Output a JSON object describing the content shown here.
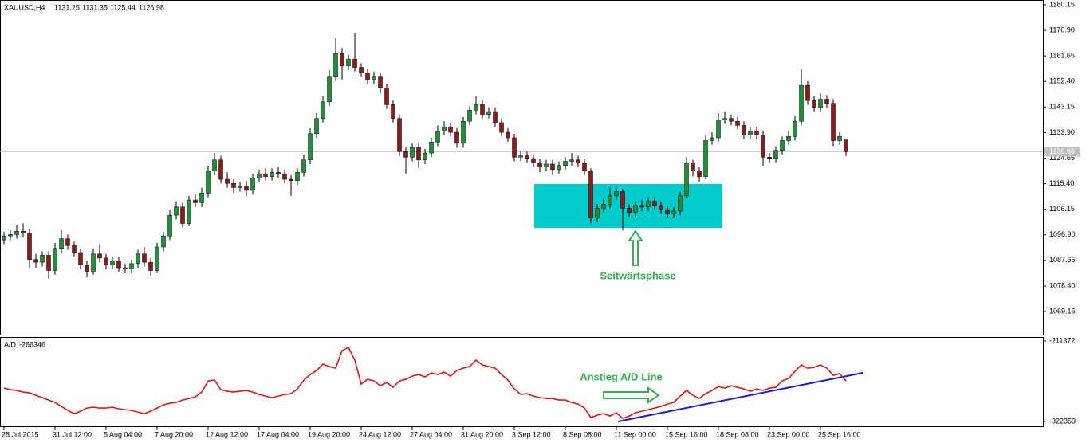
{
  "chart_data": [
    {
      "type": "candlestick",
      "title": "XAUUSD,H4",
      "annotation": "Seitwärtsphase",
      "up_color": "#1f8f3a",
      "down_color": "#8b1a1a",
      "wick_color": "#000000",
      "price_line_color": "#c0c0c0",
      "categories": [
        "28 Jul 2015",
        null,
        null,
        null,
        null,
        null,
        null,
        null,
        "31 Jul 12:00",
        null,
        null,
        null,
        null,
        null,
        null,
        null,
        "5 Aug 04:00",
        null,
        null,
        null,
        null,
        null,
        null,
        null,
        "7 Aug 20:00",
        null,
        null,
        null,
        null,
        null,
        null,
        null,
        "12 Aug 12:00",
        null,
        null,
        null,
        null,
        null,
        null,
        null,
        "17 Aug 04:00",
        null,
        null,
        null,
        null,
        null,
        null,
        null,
        "19 Aug 20:00",
        null,
        null,
        null,
        null,
        null,
        null,
        null,
        "24 Aug 12:00",
        null,
        null,
        null,
        null,
        null,
        null,
        null,
        "27 Aug 04:00",
        null,
        null,
        null,
        null,
        null,
        null,
        null,
        "31 Aug 20:00",
        null,
        null,
        null,
        null,
        null,
        null,
        null,
        "3 Sep 12:00",
        null,
        null,
        null,
        null,
        null,
        null,
        null,
        "8 Sep 08:00",
        null,
        null,
        null,
        null,
        null,
        null,
        null,
        "11 Sep 00:00",
        null,
        null,
        null,
        null,
        null,
        null,
        null,
        "15 Sep 16:00",
        null,
        null,
        null,
        null,
        null,
        null,
        null,
        "18 Sep 08:00",
        null,
        null,
        null,
        null,
        null,
        null,
        null,
        "23 Sep 00:00",
        null,
        null,
        null,
        null,
        null,
        null,
        null,
        "25 Sep 16:00",
        null,
        null,
        null,
        null
      ],
      "open": [
        1095.0,
        1096.5,
        1097.0,
        1098.2,
        1097.5,
        1088.0,
        1087.0,
        1089.5,
        1084.0,
        1092.0,
        1095.5,
        1093.0,
        1090.5,
        1086.0,
        1083.5,
        1090.0,
        1088.5,
        1086.0,
        1087.5,
        1085.0,
        1084.5,
        1086.5,
        1090.0,
        1087.0,
        1084.0,
        1092.5,
        1096.5,
        1104.0,
        1107.0,
        1101.0,
        1109.5,
        1108.5,
        1112.0,
        1120.0,
        1124.0,
        1117.0,
        1115.5,
        1114.0,
        1114.5,
        1113.0,
        1117.5,
        1119.0,
        1118.0,
        1119.5,
        1119.0,
        1117.0,
        1116.5,
        1119.5,
        1124.0,
        1133.5,
        1139.0,
        1145.0,
        1154.0,
        1162.5,
        1158.0,
        1160.5,
        1157.5,
        1155.5,
        1153.0,
        1154.0,
        1150.0,
        1144.0,
        1139.0,
        1127.0,
        1125.0,
        1128.5,
        1124.0,
        1126.5,
        1130.5,
        1134.5,
        1136.0,
        1134.0,
        1130.0,
        1138.0,
        1142.0,
        1144.0,
        1140.5,
        1141.5,
        1137.5,
        1134.0,
        1132.0,
        1125.0,
        1125.5,
        1124.5,
        1123.0,
        1121.5,
        1122.5,
        1120.5,
        1122.0,
        1123.5,
        1124.0,
        1123.0,
        1120.0,
        1103.0,
        1106.5,
        1108.0,
        1111.0,
        1112.5,
        1106.5,
        1105.0,
        1107.5,
        1107.0,
        1109.0,
        1107.5,
        1106.0,
        1104.5,
        1105.5,
        1111.0,
        1123.0,
        1120.0,
        1118.0,
        1131.0,
        1132.0,
        1138.5,
        1139.0,
        1138.0,
        1136.5,
        1133.0,
        1134.5,
        1133.0,
        1125.0,
        1124.5,
        1127.5,
        1131.0,
        1132.5,
        1138.0,
        1151.0,
        1145.5,
        1143.0,
        1146.0,
        1144.5,
        1131.0,
        1131.25
      ],
      "high": [
        1098.0,
        1098.5,
        1100.5,
        1101.0,
        1099.0,
        1090.0,
        1091.0,
        1091.0,
        1094.0,
        1098.5,
        1097.0,
        1094.5,
        1092.0,
        1087.5,
        1092.0,
        1093.5,
        1090.0,
        1089.0,
        1089.0,
        1086.5,
        1088.0,
        1091.5,
        1092.5,
        1088.5,
        1094.0,
        1098.0,
        1106.0,
        1109.0,
        1108.5,
        1111.0,
        1111.5,
        1114.0,
        1122.0,
        1126.5,
        1125.5,
        1119.5,
        1117.0,
        1116.0,
        1116.5,
        1119.0,
        1120.5,
        1121.0,
        1121.0,
        1121.5,
        1120.5,
        1118.5,
        1121.0,
        1126.0,
        1135.5,
        1141.0,
        1147.0,
        1156.5,
        1168.0,
        1164.5,
        1162.0,
        1170.0,
        1159.0,
        1157.0,
        1156.0,
        1155.5,
        1151.5,
        1145.5,
        1140.5,
        1128.5,
        1130.0,
        1130.0,
        1128.0,
        1132.0,
        1136.5,
        1138.0,
        1137.5,
        1135.5,
        1139.5,
        1143.5,
        1147.0,
        1145.5,
        1143.0,
        1143.0,
        1139.0,
        1135.5,
        1133.5,
        1127.0,
        1127.0,
        1126.0,
        1124.5,
        1124.0,
        1124.0,
        1123.5,
        1125.0,
        1126.5,
        1125.5,
        1124.5,
        1121.0,
        1108.0,
        1110.0,
        1114.0,
        1114.0,
        1113.5,
        1108.0,
        1109.0,
        1109.5,
        1110.5,
        1110.5,
        1109.0,
        1107.5,
        1107.0,
        1112.5,
        1125.0,
        1124.0,
        1121.5,
        1133.0,
        1134.0,
        1141.0,
        1141.5,
        1140.5,
        1139.5,
        1138.0,
        1136.0,
        1136.0,
        1134.5,
        1126.5,
        1129.0,
        1132.5,
        1134.5,
        1140.0,
        1157.0,
        1152.5,
        1147.0,
        1148.0,
        1147.5,
        1146.0,
        1134.0,
        1131.35
      ],
      "low": [
        1093.5,
        1095.0,
        1095.5,
        1096.0,
        1085.0,
        1085.0,
        1085.5,
        1081.0,
        1082.5,
        1090.5,
        1091.5,
        1089.0,
        1084.5,
        1081.5,
        1082.5,
        1087.0,
        1084.5,
        1084.5,
        1083.5,
        1083.0,
        1083.0,
        1085.0,
        1085.5,
        1082.0,
        1083.0,
        1091.0,
        1095.0,
        1102.5,
        1099.5,
        1100.0,
        1107.0,
        1107.0,
        1110.5,
        1118.5,
        1115.5,
        1114.0,
        1112.0,
        1112.5,
        1111.0,
        1111.5,
        1116.0,
        1116.5,
        1116.5,
        1117.5,
        1115.5,
        1111.0,
        1115.0,
        1118.0,
        1122.5,
        1132.0,
        1137.5,
        1143.5,
        1152.5,
        1153.0,
        1156.5,
        1156.0,
        1154.0,
        1151.5,
        1151.5,
        1148.0,
        1142.5,
        1137.5,
        1125.5,
        1119.0,
        1123.5,
        1121.0,
        1122.5,
        1125.0,
        1129.0,
        1133.0,
        1132.5,
        1128.5,
        1128.5,
        1136.5,
        1140.5,
        1139.0,
        1139.0,
        1136.0,
        1132.5,
        1130.5,
        1123.5,
        1123.5,
        1123.0,
        1121.5,
        1119.5,
        1120.0,
        1118.5,
        1119.0,
        1120.5,
        1122.0,
        1121.5,
        1118.5,
        1101.0,
        1101.5,
        1105.0,
        1106.5,
        1109.5,
        1098.5,
        1103.5,
        1103.5,
        1105.5,
        1105.5,
        1106.0,
        1104.5,
        1103.0,
        1103.0,
        1104.0,
        1110.0,
        1118.0,
        1116.0,
        1117.0,
        1129.5,
        1130.5,
        1137.0,
        1136.5,
        1135.0,
        1131.5,
        1131.5,
        1131.5,
        1122.0,
        1123.0,
        1123.0,
        1126.0,
        1129.5,
        1131.0,
        1136.5,
        1144.0,
        1141.5,
        1141.5,
        1143.0,
        1129.0,
        1129.5,
        1125.44
      ],
      "close": [
        1096.5,
        1097.0,
        1098.2,
        1097.5,
        1088.0,
        1087.0,
        1089.5,
        1084.0,
        1092.0,
        1095.5,
        1093.0,
        1090.5,
        1086.0,
        1083.5,
        1090.0,
        1088.5,
        1086.0,
        1087.5,
        1085.0,
        1084.5,
        1086.5,
        1090.0,
        1087.0,
        1084.0,
        1092.5,
        1096.5,
        1104.0,
        1107.0,
        1101.0,
        1109.5,
        1108.5,
        1112.0,
        1120.0,
        1124.0,
        1117.0,
        1115.5,
        1114.0,
        1114.5,
        1113.0,
        1117.5,
        1119.0,
        1118.0,
        1119.5,
        1119.0,
        1117.0,
        1116.5,
        1119.5,
        1124.0,
        1133.5,
        1139.0,
        1145.0,
        1154.0,
        1162.5,
        1158.0,
        1160.5,
        1157.5,
        1155.5,
        1153.0,
        1154.0,
        1150.0,
        1144.0,
        1139.0,
        1127.0,
        1125.0,
        1128.5,
        1124.0,
        1126.5,
        1130.5,
        1134.5,
        1136.0,
        1134.0,
        1130.0,
        1138.0,
        1142.0,
        1144.0,
        1140.5,
        1141.5,
        1137.5,
        1134.0,
        1132.0,
        1125.0,
        1125.5,
        1124.5,
        1123.0,
        1121.5,
        1122.5,
        1120.5,
        1122.0,
        1123.5,
        1124.0,
        1123.0,
        1120.0,
        1103.0,
        1106.5,
        1108.0,
        1111.0,
        1112.5,
        1106.5,
        1105.0,
        1107.5,
        1107.0,
        1109.0,
        1107.5,
        1106.0,
        1104.5,
        1105.5,
        1111.0,
        1123.0,
        1120.0,
        1118.0,
        1131.0,
        1132.0,
        1138.5,
        1139.0,
        1138.0,
        1136.5,
        1133.0,
        1134.5,
        1133.0,
        1125.0,
        1124.5,
        1127.5,
        1131.0,
        1132.5,
        1138.0,
        1151.0,
        1145.5,
        1143.0,
        1146.0,
        1144.5,
        1131.0,
        1132.5,
        1126.98
      ],
      "ylim": [
        1060.8,
        1181.3
      ],
      "yticks": [
        1180.15,
        {
          "value": 1170.9,
          "label": "1170.90"
        },
        1161.65,
        {
          "value": 1152.4,
          "label": "1152.40"
        },
        1143.15,
        {
          "value": 1133.9,
          "label": "1133.90"
        },
        1124.65,
        {
          "value": 1115.4,
          "label": "1115.40"
        },
        1106.15,
        {
          "value": 1096.9,
          "label": "1096.90"
        },
        1087.65,
        {
          "value": 1078.4,
          "label": "1078.40"
        },
        1069.15
      ]
    },
    {
      "type": "line",
      "title": "A/D",
      "annotation": "Anstieg A/D Line",
      "color": "#ee1111",
      "values": [
        -276400,
        -278500,
        -279600,
        -281800,
        -282900,
        -286200,
        -289500,
        -292800,
        -296100,
        -301600,
        -307100,
        -311500,
        -308200,
        -303800,
        -302700,
        -303800,
        -303800,
        -302700,
        -304900,
        -306000,
        -307100,
        -309300,
        -311500,
        -308200,
        -303800,
        -299400,
        -297200,
        -296100,
        -292800,
        -290600,
        -288400,
        -281800,
        -266400,
        -265300,
        -278500,
        -280700,
        -281800,
        -280700,
        -279600,
        -281800,
        -285100,
        -287300,
        -289500,
        -287300,
        -285100,
        -284000,
        -277400,
        -265300,
        -257600,
        -252100,
        -243300,
        -246600,
        -248800,
        -224600,
        -220200,
        -237800,
        -270800,
        -264200,
        -266400,
        -273000,
        -268600,
        -275200,
        -266400,
        -264200,
        -259800,
        -257600,
        -260900,
        -255400,
        -257600,
        -254300,
        -259800,
        -252100,
        -248800,
        -246600,
        -237800,
        -244400,
        -246600,
        -248800,
        -257600,
        -265300,
        -277400,
        -285100,
        -284000,
        -287300,
        -289500,
        -290600,
        -290600,
        -292800,
        -292800,
        -296100,
        -298300,
        -303800,
        -317000,
        -313700,
        -311500,
        -314800,
        -310400,
        -318100,
        -314800,
        -310400,
        -308200,
        -306000,
        -303800,
        -301600,
        -298300,
        -296100,
        -287300,
        -279600,
        -286200,
        -290600,
        -284000,
        -279600,
        -274100,
        -276300,
        -273000,
        -275200,
        -277400,
        -280700,
        -277400,
        -279600,
        -276300,
        -275200,
        -266400,
        -263100,
        -253200,
        -244400,
        -248800,
        -247700,
        -244400,
        -248800,
        -258700,
        -256500,
        -266346
      ],
      "ylim": [
        -330052,
        -206976
      ],
      "yticks": [
        -211372,
        -322359
      ]
    }
  ]
}
